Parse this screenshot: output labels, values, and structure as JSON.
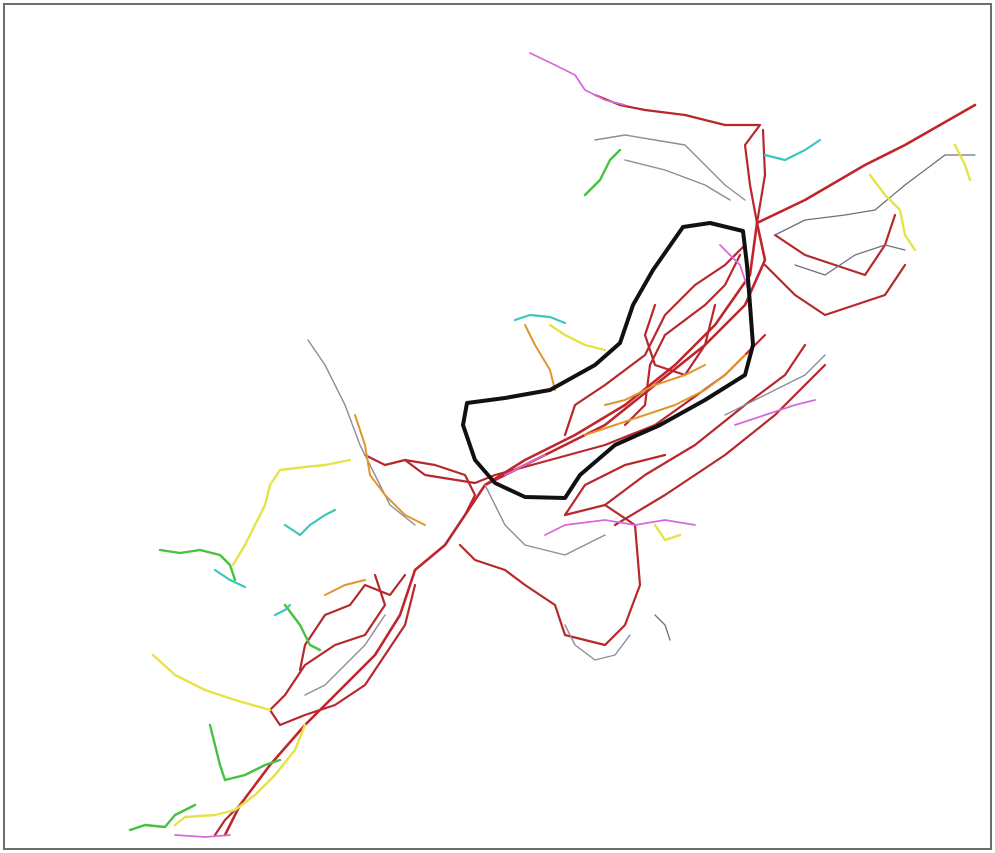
{
  "map": {
    "colors": {
      "frame": "#6e6e6e",
      "network_main": "#c0252c",
      "network_secondary": "#8c8c9c",
      "branch_pink": "#d46bd9",
      "branch_orange": "#e0962c",
      "branch_yellow": "#e6e24a",
      "branch_green": "#46c140",
      "branch_cyan": "#3cc6c0",
      "highlight_outline": "#111111"
    }
  }
}
